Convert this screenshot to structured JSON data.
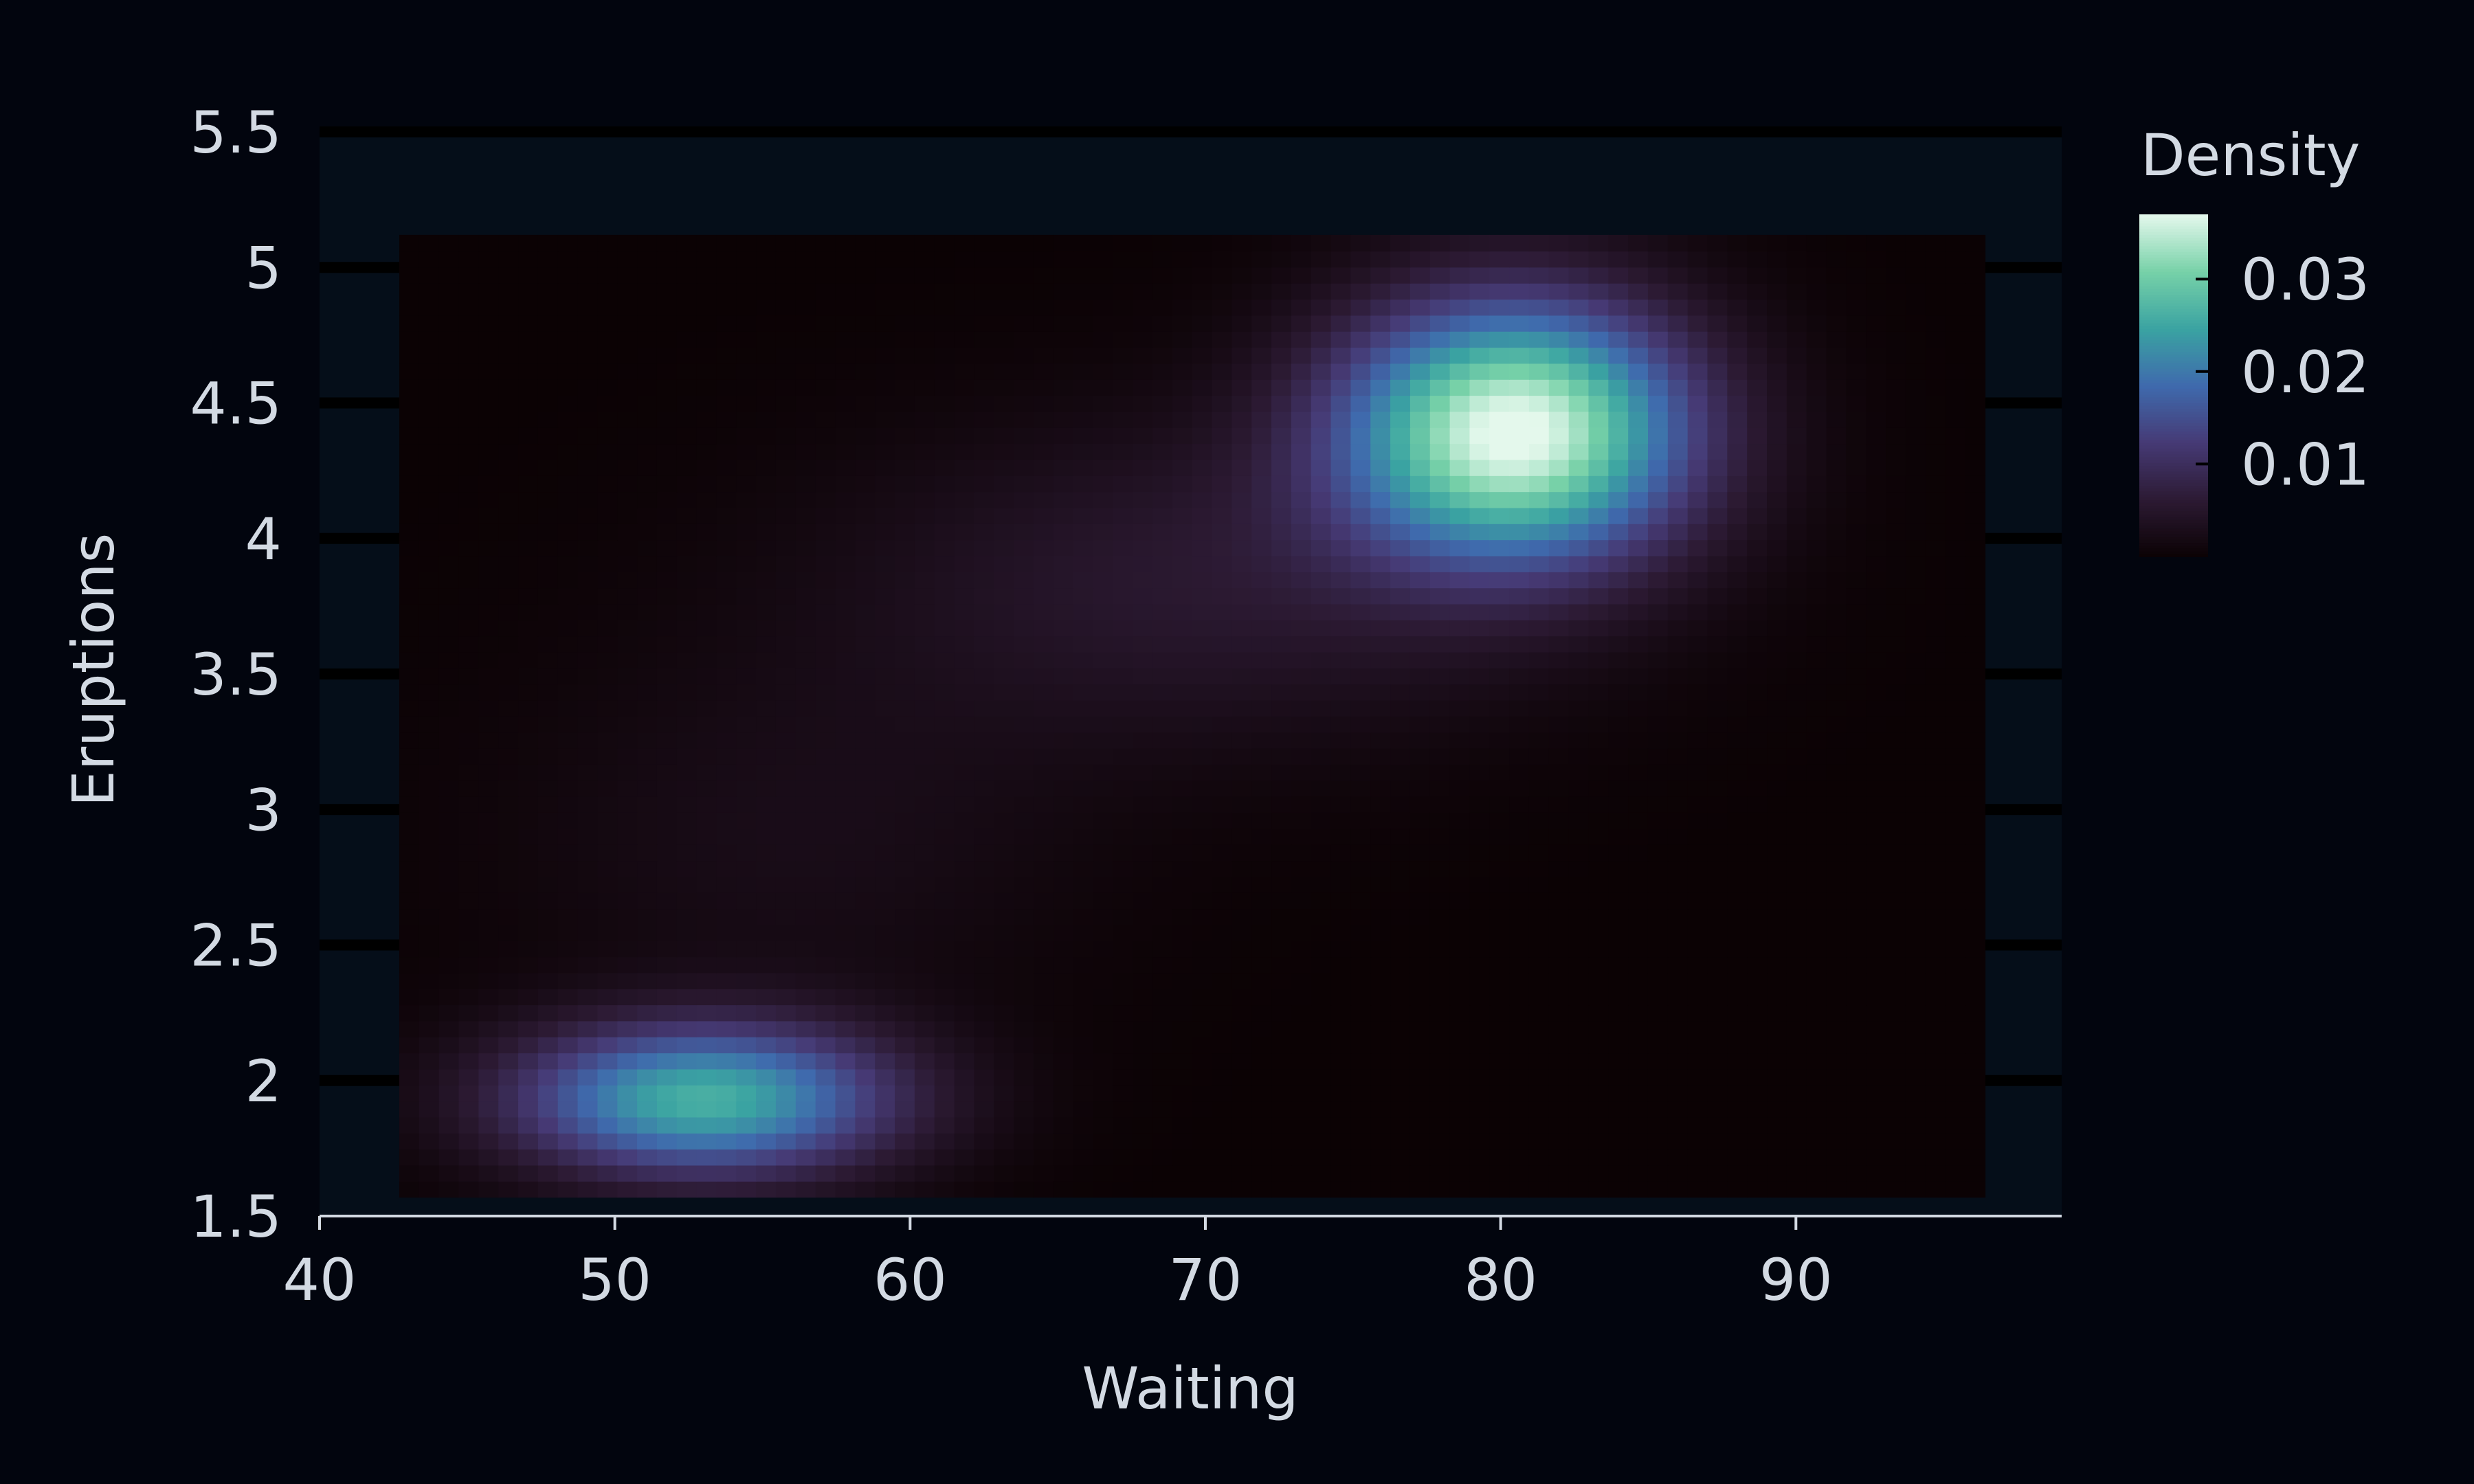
{
  "chart_data": {
    "type": "heatmap",
    "title": "",
    "xlabel": "Waiting",
    "ylabel": "Eruptions",
    "xlim": [
      40,
      99
    ],
    "ylim": [
      1.5,
      5.5
    ],
    "x_ticks": [
      40,
      50,
      60,
      70,
      80,
      90
    ],
    "y_ticks": [
      1.5,
      2,
      2.5,
      3,
      3.5,
      4,
      4.5,
      5,
      5.5
    ],
    "x_tick_labels": [
      "40",
      "50",
      "60",
      "70",
      "80",
      "90"
    ],
    "y_tick_labels": [
      "1.5",
      "2",
      "2.5",
      "3",
      "3.5",
      "4",
      "4.5",
      "5",
      "5.5"
    ],
    "grid_x_range": [
      42.7,
      96.4
    ],
    "grid_y_range": [
      1.57,
      5.12
    ],
    "grid_nx": 80,
    "grid_ny": 60,
    "density_peaks": [
      {
        "waiting": 80.5,
        "eruptions": 4.4,
        "density": 0.037
      },
      {
        "waiting": 53.0,
        "eruptions": 1.93,
        "density": 0.026
      }
    ],
    "legend": {
      "title": "Density",
      "position": "right",
      "min": 0,
      "max": 0.037,
      "ticks": [
        0.01,
        0.02,
        0.03
      ],
      "tick_labels": [
        "0.01",
        "0.02",
        "0.03"
      ]
    },
    "colors": {
      "background": "#02050e",
      "panel": "#050e19",
      "gridline": "#000000",
      "text": "#d3dae3",
      "colormap": [
        "#0b0204",
        "#2c1a33",
        "#463a75",
        "#3f6aad",
        "#3aa3a2",
        "#77d1a8",
        "#e4f8ec"
      ]
    }
  }
}
